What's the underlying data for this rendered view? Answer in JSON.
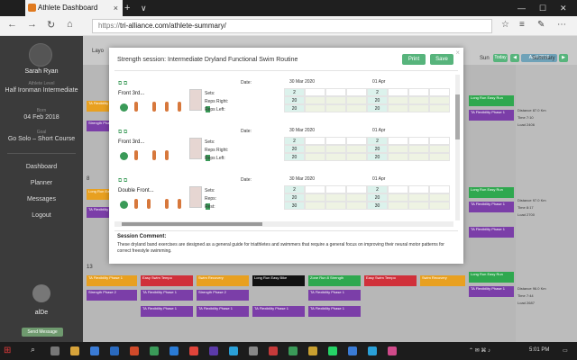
{
  "browser": {
    "tab_title": "Athlete Dashboard",
    "tab_close": "×",
    "new_tab": "+",
    "tab_dropdown": "∨",
    "min": "—",
    "max": "☐",
    "close": "✕",
    "url_protocol": "https://",
    "url_rest": "tri-alliance.com/athlete-summary/",
    "back": "←",
    "forward": "→",
    "refresh": "↻",
    "home": "⌂"
  },
  "sidebar": {
    "name": "Sarah Ryan",
    "level_label": "Athlete Level",
    "level": "Half Ironman Intermediate",
    "born_label": "Born",
    "born": "04 Feb 2018",
    "goal_label": "Goal",
    "goal": "Go Solo – Short Course",
    "menu": [
      "Dashboard",
      "Planner",
      "Messages",
      "Logout"
    ],
    "user": "alDe",
    "send_message": "Send Message"
  },
  "main": {
    "header_left": "Layo",
    "days": [
      "Sun",
      "Summary"
    ],
    "prev": "◀",
    "month": "April 2019",
    "next": "▶",
    "today": "Today",
    "row_numbers": [
      "8",
      "13"
    ],
    "cards": [
      "Long Run Easy Run",
      "TA Flexibility Phase 1",
      "Strength Phase 2",
      "Long Run Easy Bike",
      "Easy Swim Tempo",
      "Swim Recovery",
      "TA Flexibility Phase 1",
      "Zone Run 8 Strength",
      "TA Flexibility Phase 1",
      "Long Run Easy Run",
      "TA Flexibility Phase 1",
      "TA Flexibility Phase 1"
    ],
    "summary": [
      [
        "Distance",
        "87.0 Km"
      ],
      [
        "Time",
        "7:10"
      ],
      [
        "Load",
        "2406"
      ],
      [
        "Distance",
        "97.0 Km"
      ],
      [
        "Time",
        "8:17"
      ],
      [
        "Load",
        "2700"
      ],
      [
        "Distance",
        "96.0 Km"
      ],
      [
        "Time",
        "7:44"
      ],
      [
        "Load",
        "2687"
      ]
    ]
  },
  "modal": {
    "title": "Strength session: Intermediate Dryland Functional Swim Routine",
    "print": "Print",
    "save": "Save",
    "close": "×",
    "date_label": "Date:",
    "dates": [
      "30 Mar 2020",
      "01 Apr"
    ],
    "exercises": [
      {
        "name": "Front 3rd...",
        "labels": [
          "Sets:",
          "Reps Right:",
          "Reps Left:"
        ],
        "rows": [
          [
            "2",
            "2"
          ],
          [
            "20",
            "20"
          ],
          [
            "20",
            "20"
          ]
        ]
      },
      {
        "name": "Front 3rd...",
        "labels": [
          "Sets:",
          "Reps Right:",
          "Reps Left:"
        ],
        "rows": [
          [
            "2",
            "2"
          ],
          [
            "20",
            "20"
          ],
          [
            "20",
            "20"
          ]
        ]
      },
      {
        "name": "Double Front...",
        "labels": [
          "Sets:",
          "Reps:",
          "Rest:"
        ],
        "rows": [
          [
            "2",
            "2"
          ],
          [
            "20",
            "20"
          ],
          [
            "30",
            "30"
          ]
        ]
      }
    ],
    "comment_heading": "Session Comment:",
    "comment": "These dryland band exercises are designed as a general guide for triathletes and swimmers that require a general focus on improving their neural motor patterns for correct freestyle swimming."
  },
  "taskbar": {
    "time": "5:01 PM",
    "start": "⊞",
    "search": "⌕"
  },
  "colors": {
    "accent_green": "#57b47c",
    "card_orange": "#e8a020",
    "card_purple": "#7b3ea8",
    "card_red": "#d0303a",
    "card_green": "#2fa84f"
  }
}
